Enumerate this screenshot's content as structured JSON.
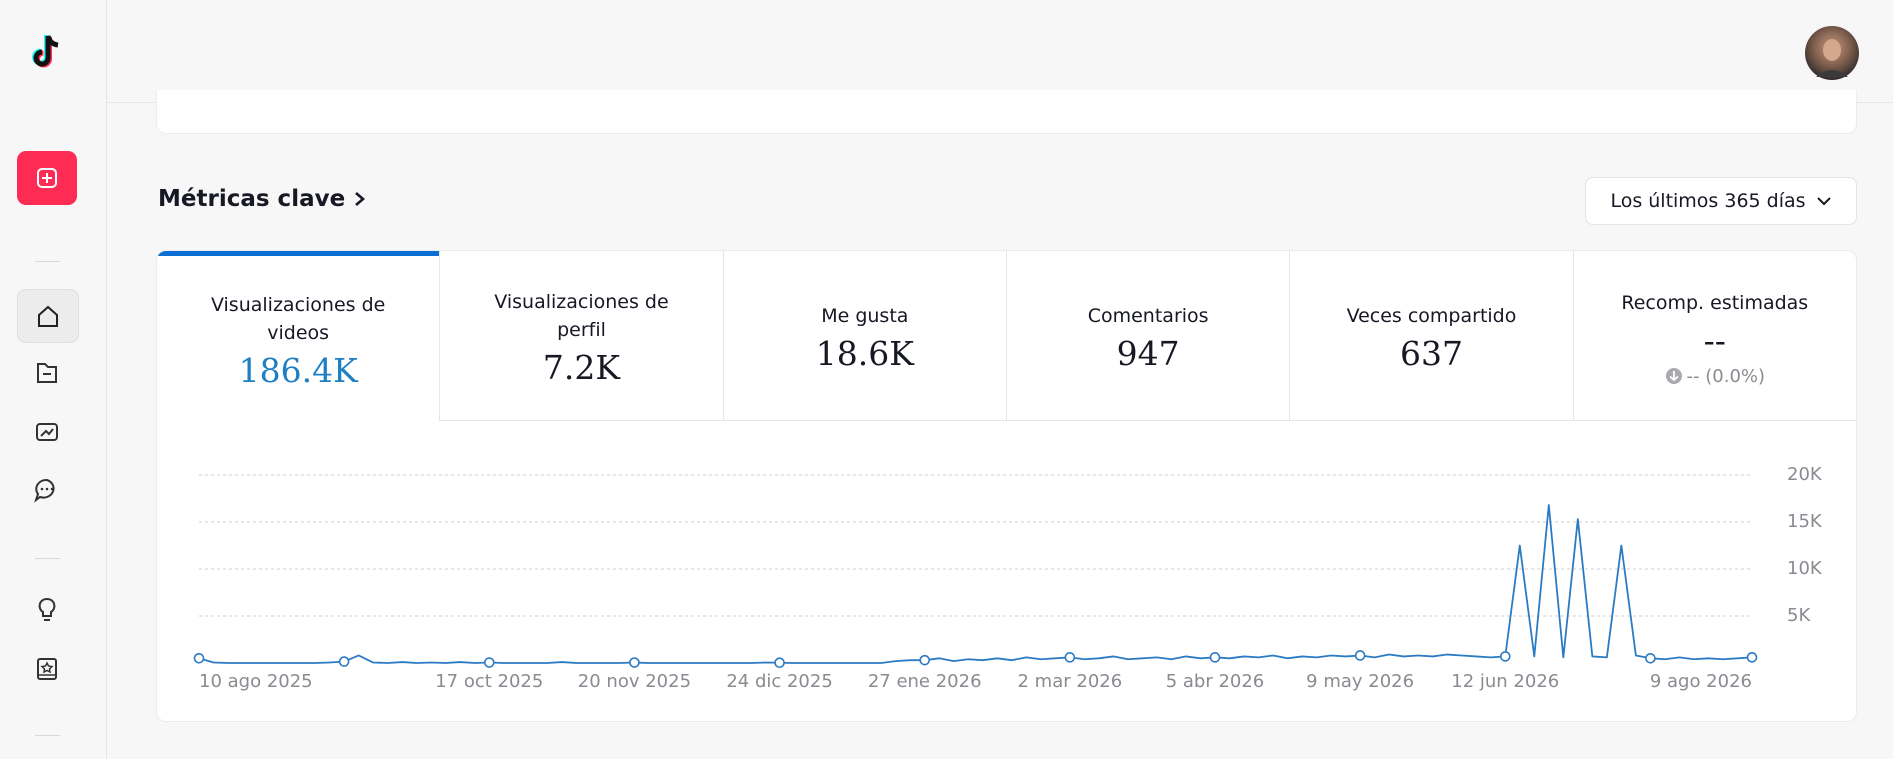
{
  "section": {
    "title": "Métricas clave",
    "period": "Los últimos 365 días"
  },
  "metrics": [
    {
      "label": "Visualizaciones de videos",
      "value": "186.4K"
    },
    {
      "label": "Visualizaciones de perfil",
      "value": "7.2K"
    },
    {
      "label": "Me gusta",
      "value": "18.6K"
    },
    {
      "label": "Comentarios",
      "value": "947"
    },
    {
      "label": "Veces compartido",
      "value": "637"
    },
    {
      "label": "Recomp. estimadas",
      "value": "--",
      "change": "-- (0.0%)"
    }
  ],
  "chart_data": {
    "type": "line",
    "categories": [
      "10 ago 2025",
      null,
      null,
      null,
      null,
      null,
      null,
      null,
      null,
      null,
      null,
      null,
      null,
      null,
      null,
      null,
      null,
      null,
      null,
      null,
      "17 oct 2025",
      null,
      null,
      null,
      null,
      null,
      null,
      null,
      null,
      null,
      "20 nov 2025",
      null,
      null,
      null,
      null,
      null,
      null,
      null,
      null,
      null,
      "24 dic 2025",
      null,
      null,
      null,
      null,
      null,
      null,
      null,
      null,
      null,
      "27 ene 2026",
      null,
      null,
      null,
      null,
      null,
      null,
      null,
      null,
      null,
      "2 mar 2026",
      null,
      null,
      null,
      null,
      null,
      null,
      null,
      null,
      null,
      "5 abr 2026",
      null,
      null,
      null,
      null,
      null,
      null,
      null,
      null,
      null,
      "9 may 2026",
      null,
      null,
      null,
      null,
      null,
      null,
      null,
      null,
      null,
      "12 jun 2026",
      null,
      null,
      null,
      null,
      null,
      null,
      null,
      null,
      null,
      null,
      null,
      null,
      null,
      null,
      null,
      null,
      "9 ago 2026"
    ],
    "series": [
      {
        "color": "#2b7bc4",
        "values": [
          500,
          50,
          0,
          0,
          0,
          0,
          0,
          0,
          0,
          50,
          150,
          800,
          50,
          0,
          100,
          0,
          50,
          0,
          100,
          0,
          50,
          0,
          0,
          0,
          0,
          100,
          0,
          0,
          0,
          0,
          50,
          0,
          0,
          0,
          0,
          0,
          0,
          0,
          0,
          50,
          30,
          0,
          0,
          0,
          0,
          0,
          0,
          0,
          200,
          300,
          300,
          500,
          200,
          400,
          300,
          500,
          300,
          600,
          400,
          500,
          600,
          400,
          500,
          700,
          400,
          500,
          600,
          400,
          700,
          500,
          600,
          500,
          700,
          600,
          800,
          500,
          700,
          600,
          800,
          700,
          800,
          600,
          900,
          700,
          800,
          700,
          900,
          800,
          700,
          600,
          700,
          12500,
          700,
          16800,
          600,
          15300,
          700,
          600,
          12500,
          800,
          500,
          400,
          600,
          400,
          500,
          400,
          500,
          600
        ]
      }
    ],
    "ylim": [
      0,
      20000
    ],
    "yticks": [
      {
        "value": 5000,
        "label": "5K"
      },
      {
        "value": 10000,
        "label": "10K"
      },
      {
        "value": 15000,
        "label": "15K"
      },
      {
        "value": 20000,
        "label": "20K"
      }
    ],
    "grid": true
  }
}
